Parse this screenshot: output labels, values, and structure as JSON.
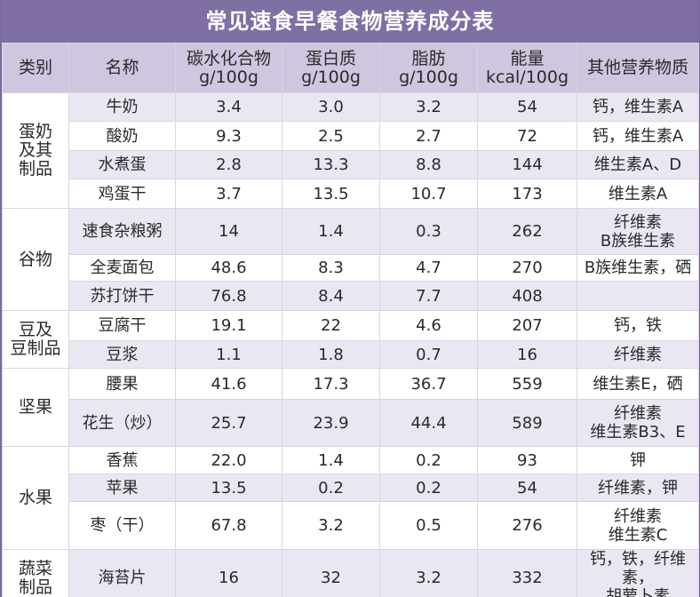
{
  "title": "常见速食早餐食物营养成分表",
  "headers": [
    [
      "类别"
    ],
    [
      "名称"
    ],
    [
      "碳水化合物",
      "g/100g"
    ],
    [
      "蛋白质",
      "g/100g"
    ],
    [
      "脂肪",
      "g/100g"
    ],
    [
      "能量",
      "kcal/100g"
    ],
    [
      "其他营养物质"
    ]
  ],
  "categories": [
    {
      "lines": [
        "蛋奶",
        "及其",
        "制品"
      ],
      "rows": [
        {
          "name": "牛奶",
          "carb": "3.4",
          "protein": "3.0",
          "fat": "3.2",
          "energy": "54",
          "other": [
            "钙，维生素A"
          ]
        },
        {
          "name": "酸奶",
          "carb": "9.3",
          "protein": "2.5",
          "fat": "2.7",
          "energy": "72",
          "other": [
            "钙，维生素A"
          ]
        },
        {
          "name": "水煮蛋",
          "carb": "2.8",
          "protein": "13.3",
          "fat": "8.8",
          "energy": "144",
          "other": [
            "维生素A、D"
          ]
        },
        {
          "name": "鸡蛋干",
          "carb": "3.7",
          "protein": "13.5",
          "fat": "10.7",
          "energy": "173",
          "other": [
            "维生素A"
          ]
        }
      ]
    },
    {
      "lines": [
        "谷物"
      ],
      "rows": [
        {
          "name": "速食杂粮粥",
          "carb": "14",
          "protein": "1.4",
          "fat": "0.3",
          "energy": "262",
          "other": [
            "纤维素",
            "B族维生素"
          ]
        },
        {
          "name": "全麦面包",
          "carb": "48.6",
          "protein": "8.3",
          "fat": "4.7",
          "energy": "270",
          "other": [
            "B族维生素，硒"
          ]
        },
        {
          "name": "苏打饼干",
          "carb": "76.8",
          "protein": "8.4",
          "fat": "7.7",
          "energy": "408",
          "other": [
            ""
          ]
        }
      ]
    },
    {
      "lines": [
        "豆及",
        "豆制品"
      ],
      "rows": [
        {
          "name": "豆腐干",
          "carb": "19.1",
          "protein": "22",
          "fat": "4.6",
          "energy": "207",
          "other": [
            "钙，铁"
          ]
        },
        {
          "name": "豆浆",
          "carb": "1.1",
          "protein": "1.8",
          "fat": "0.7",
          "energy": "16",
          "other": [
            "纤维素"
          ]
        }
      ]
    },
    {
      "lines": [
        "坚果"
      ],
      "rows": [
        {
          "name": "腰果",
          "carb": "41.6",
          "protein": "17.3",
          "fat": "36.7",
          "energy": "559",
          "other": [
            "维生素E，硒"
          ]
        },
        {
          "name": "花生（炒）",
          "carb": "25.7",
          "protein": "23.9",
          "fat": "44.4",
          "energy": "589",
          "other": [
            "纤维素",
            "维生素B3、E"
          ]
        }
      ]
    },
    {
      "lines": [
        "水果"
      ],
      "rows": [
        {
          "name": "香蕉",
          "carb": "22.0",
          "protein": "1.4",
          "fat": "0.2",
          "energy": "93",
          "other": [
            "钾"
          ]
        },
        {
          "name": "苹果",
          "carb": "13.5",
          "protein": "0.2",
          "fat": "0.2",
          "energy": "54",
          "other": [
            "纤维素，钾"
          ]
        },
        {
          "name": "枣（干）",
          "carb": "67.8",
          "protein": "3.2",
          "fat": "0.5",
          "energy": "276",
          "other": [
            "纤维素",
            "维生素C"
          ]
        }
      ]
    },
    {
      "lines": [
        "蔬菜",
        "制品"
      ],
      "rows": [
        {
          "name": "海苔片",
          "carb": "16",
          "protein": "32",
          "fat": "3.2",
          "energy": "332",
          "other": [
            "钙，铁，纤维素，",
            "胡萝卜素"
          ]
        }
      ]
    }
  ]
}
